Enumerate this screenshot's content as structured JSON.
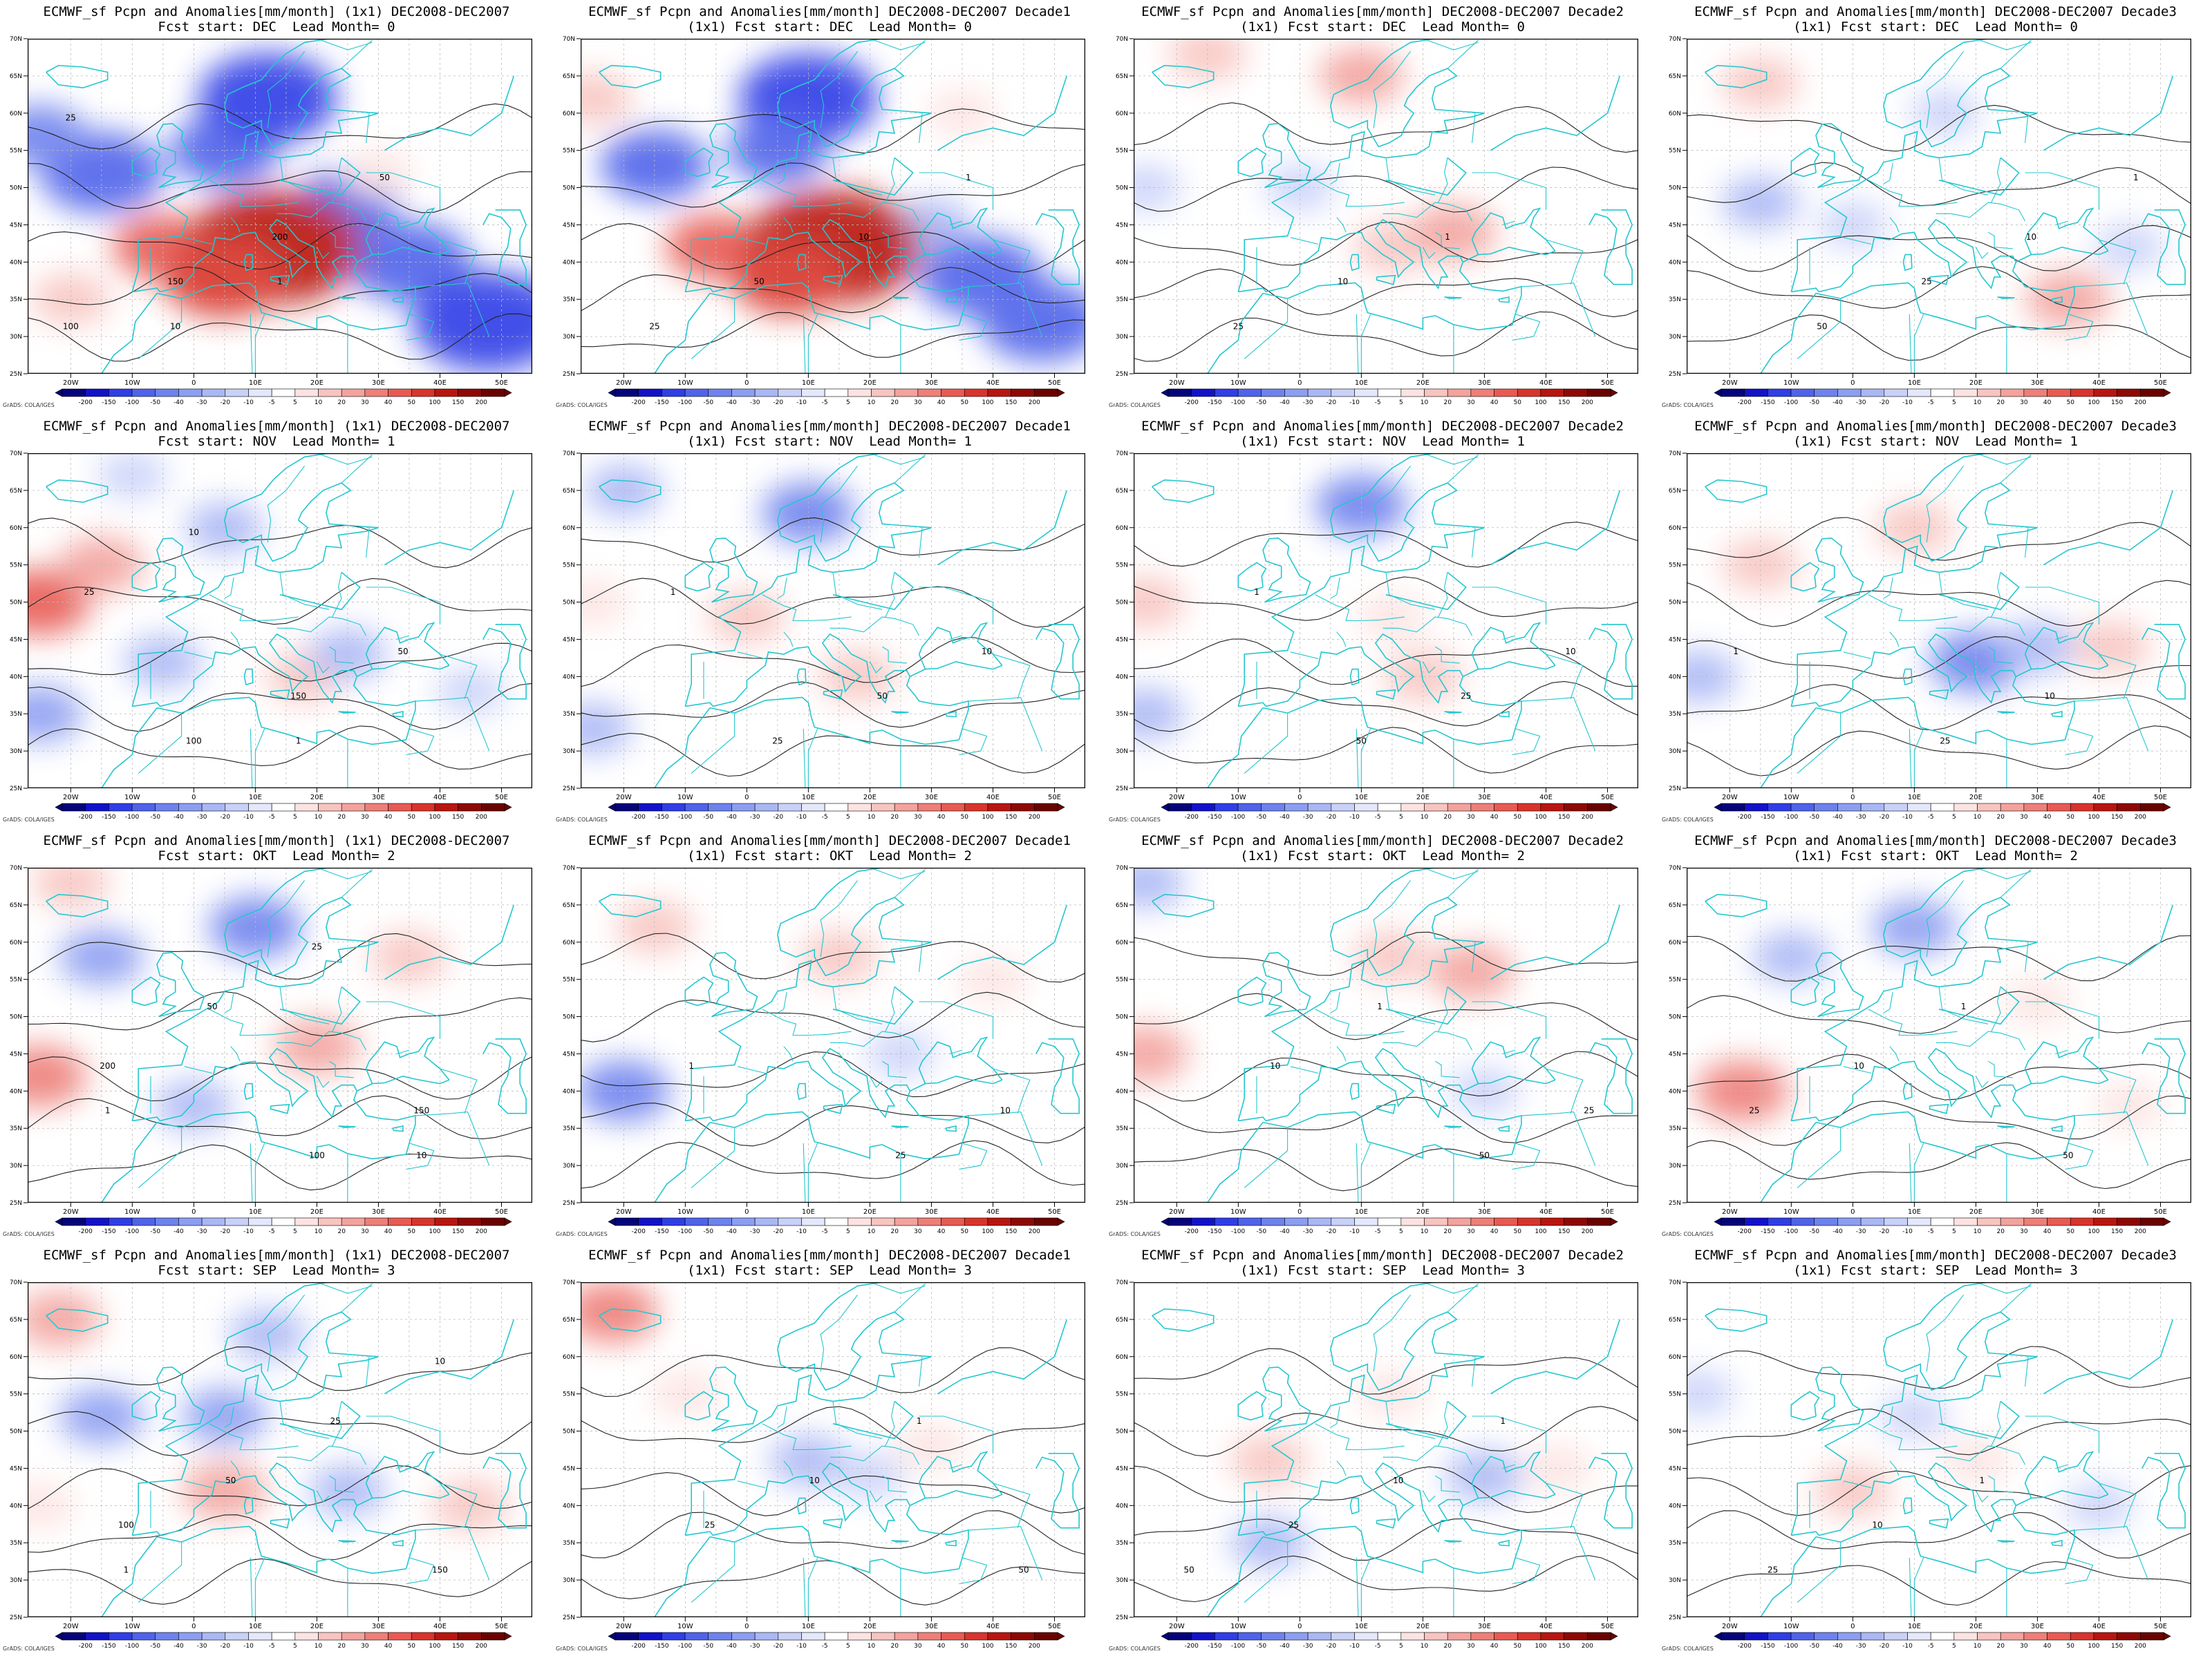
{
  "figure": {
    "variable": "Pcpn and Anomalies[mm/month]",
    "colorbar_levels": [
      "-200",
      "-150",
      "-100",
      "-50",
      "-40",
      "-30",
      "-20",
      "-10",
      "-5",
      "5",
      "10",
      "20",
      "30",
      "40",
      "50",
      "100",
      "150",
      "200"
    ],
    "colorbar_colors": [
      "#05047a",
      "#1212c9",
      "#2f3ee6",
      "#4f63ea",
      "#6e82ee",
      "#8c9ef2",
      "#aab7f5",
      "#c9d1f9",
      "#e4e8fc",
      "#ffffff",
      "#fce3e1",
      "#f8c4c0",
      "#f3a29d",
      "#ee7e78",
      "#e85a52",
      "#d8342c",
      "#b9150f",
      "#8e0804",
      "#6a0300"
    ],
    "credit": "GrADS: COLA/IGES",
    "x_ticks": [
      "20W",
      "10W",
      "0",
      "10E",
      "20E",
      "30E",
      "40E",
      "50E"
    ],
    "y_ticks": [
      "25N",
      "30N",
      "35N",
      "40N",
      "45N",
      "50N",
      "55N",
      "60N",
      "65N",
      "70N"
    ],
    "colors": {
      "land_outline": "#23c7cf",
      "contour": "#222222",
      "grid_dash": "#bbbbbb"
    }
  },
  "panels": [
    {
      "title_line1": "ECMWF_sf Pcpn and Anomalies[mm/month] (1x1) DEC2008-DEC2007",
      "title_line2": "Fcst start: DEC  Lead Month= 0",
      "contour_labels": [
        "100",
        "150",
        "200",
        "50",
        "25",
        "10",
        "1"
      ],
      "anomaly_blobs": [
        {
          "lon": -15,
          "lat": 52,
          "value": -80
        },
        {
          "lon": 5,
          "lat": 55,
          "value": -60
        },
        {
          "lon": 12,
          "lat": 62,
          "value": -100
        },
        {
          "lon": 25,
          "lat": 48,
          "value": -50
        },
        {
          "lon": 35,
          "lat": 40,
          "value": -80
        },
        {
          "lon": 48,
          "lat": 32,
          "value": -120
        },
        {
          "lon": -25,
          "lat": 57,
          "value": -40
        },
        {
          "lon": -5,
          "lat": 42,
          "value": 50
        },
        {
          "lon": 13,
          "lat": 42,
          "value": 150
        },
        {
          "lon": 5,
          "lat": 38,
          "value": 80
        },
        {
          "lon": -20,
          "lat": 35,
          "value": 20
        },
        {
          "lon": 30,
          "lat": 52,
          "value": 10
        }
      ]
    },
    {
      "title_line1": "ECMWF_sf Pcpn and Anomalies[mm/month] DEC2008-DEC2007 Decade1",
      "title_line2": "(1x1) Fcst start: DEC  Lead Month= 0",
      "contour_labels": [
        "25",
        "50",
        "10",
        "1"
      ],
      "anomaly_blobs": [
        {
          "lon": -15,
          "lat": 53,
          "value": -60
        },
        {
          "lon": 10,
          "lat": 62,
          "value": -100
        },
        {
          "lon": 5,
          "lat": 55,
          "value": -50
        },
        {
          "lon": 30,
          "lat": 45,
          "value": -20
        },
        {
          "lon": 38,
          "lat": 38,
          "value": -80
        },
        {
          "lon": 48,
          "lat": 32,
          "value": -80
        },
        {
          "lon": -5,
          "lat": 42,
          "value": 50
        },
        {
          "lon": 14,
          "lat": 42,
          "value": 150
        },
        {
          "lon": 7,
          "lat": 38,
          "value": 70
        },
        {
          "lon": -25,
          "lat": 62,
          "value": 20
        },
        {
          "lon": 35,
          "lat": 60,
          "value": 10
        }
      ]
    },
    {
      "title_line1": "ECMWF_sf Pcpn and Anomalies[mm/month] DEC2008-DEC2007 Decade2",
      "title_line2": "(1x1) Fcst start: DEC  Lead Month= 0",
      "contour_labels": [
        "25",
        "10",
        "1"
      ],
      "anomaly_blobs": [
        {
          "lon": -15,
          "lat": 68,
          "value": 20
        },
        {
          "lon": 10,
          "lat": 65,
          "value": 30
        },
        {
          "lon": 0,
          "lat": 50,
          "value": -10
        },
        {
          "lon": 15,
          "lat": 42,
          "value": 20
        },
        {
          "lon": 25,
          "lat": 44,
          "value": 30
        },
        {
          "lon": -25,
          "lat": 50,
          "value": -10
        }
      ]
    },
    {
      "title_line1": "ECMWF_sf Pcpn and Anomalies[mm/month] DEC2008-DEC2007 Decade3",
      "title_line2": "(1x1) Fcst start: DEC  Lead Month= 0",
      "contour_labels": [
        "50",
        "25",
        "10",
        "1"
      ],
      "anomaly_blobs": [
        {
          "lon": -15,
          "lat": 64,
          "value": 20
        },
        {
          "lon": -15,
          "lat": 48,
          "value": -20
        },
        {
          "lon": 0,
          "lat": 45,
          "value": -10
        },
        {
          "lon": 35,
          "lat": 35,
          "value": 30
        },
        {
          "lon": 45,
          "lat": 42,
          "value": -10
        },
        {
          "lon": 15,
          "lat": 60,
          "value": -10
        }
      ]
    },
    {
      "title_line1": "ECMWF_sf Pcpn and Anomalies[mm/month] (1x1) DEC2008-DEC2007",
      "title_line2": "Fcst start: NOV  Lead Month= 1",
      "contour_labels": [
        "100",
        "150",
        "50",
        "25",
        "10",
        "1"
      ],
      "anomaly_blobs": [
        {
          "lon": -25,
          "lat": 50,
          "value": 50
        },
        {
          "lon": -15,
          "lat": 55,
          "value": 30
        },
        {
          "lon": -5,
          "lat": 42,
          "value": -20
        },
        {
          "lon": 5,
          "lat": 60,
          "value": -20
        },
        {
          "lon": 18,
          "lat": 40,
          "value": 20
        },
        {
          "lon": 25,
          "lat": 43,
          "value": -20
        },
        {
          "lon": -25,
          "lat": 35,
          "value": -30
        },
        {
          "lon": 45,
          "lat": 38,
          "value": -10
        },
        {
          "lon": -10,
          "lat": 67,
          "value": -10
        }
      ]
    },
    {
      "title_line1": "ECMWF_sf Pcpn and Anomalies[mm/month] DEC2008-DEC2007 Decade1",
      "title_line2": "(1x1) Fcst start: NOV  Lead Month= 1",
      "contour_labels": [
        "25",
        "50",
        "10",
        "1"
      ],
      "anomaly_blobs": [
        {
          "lon": -20,
          "lat": 65,
          "value": -20
        },
        {
          "lon": 10,
          "lat": 62,
          "value": -40
        },
        {
          "lon": 0,
          "lat": 48,
          "value": 20
        },
        {
          "lon": 18,
          "lat": 40,
          "value": 20
        },
        {
          "lon": -25,
          "lat": 33,
          "value": -20
        },
        {
          "lon": -25,
          "lat": 50,
          "value": 10
        }
      ]
    },
    {
      "title_line1": "ECMWF_sf Pcpn and Anomalies[mm/month] DEC2008-DEC2007 Decade2",
      "title_line2": "(1x1) Fcst start: NOV  Lead Month= 1",
      "contour_labels": [
        "50",
        "25",
        "10",
        "1"
      ],
      "anomaly_blobs": [
        {
          "lon": -25,
          "lat": 50,
          "value": 20
        },
        {
          "lon": 10,
          "lat": 63,
          "value": -40
        },
        {
          "lon": 15,
          "lat": 48,
          "value": 10
        },
        {
          "lon": 20,
          "lat": 40,
          "value": 20
        },
        {
          "lon": -25,
          "lat": 35,
          "value": -20
        }
      ]
    },
    {
      "title_line1": "ECMWF_sf Pcpn and Anomalies[mm/month] DEC2008-DEC2007 Decade3",
      "title_line2": "(1x1) Fcst start: NOV  Lead Month= 1",
      "contour_labels": [
        "25",
        "10",
        "1"
      ],
      "anomaly_blobs": [
        {
          "lon": 10,
          "lat": 60,
          "value": 20
        },
        {
          "lon": -15,
          "lat": 55,
          "value": 20
        },
        {
          "lon": 20,
          "lat": 42,
          "value": -40
        },
        {
          "lon": 30,
          "lat": 44,
          "value": -20
        },
        {
          "lon": 42,
          "lat": 44,
          "value": 20
        },
        {
          "lon": -25,
          "lat": 40,
          "value": -20
        }
      ]
    },
    {
      "title_line1": "ECMWF_sf Pcpn and Anomalies[mm/month] (1x1) DEC2008-DEC2007",
      "title_line2": "Fcst start: OKT  Lead Month= 2",
      "contour_labels": [
        "100",
        "150",
        "200",
        "50",
        "25",
        "10",
        "1"
      ],
      "anomaly_blobs": [
        {
          "lon": -25,
          "lat": 42,
          "value": 40
        },
        {
          "lon": -15,
          "lat": 58,
          "value": -30
        },
        {
          "lon": 10,
          "lat": 62,
          "value": -40
        },
        {
          "lon": 20,
          "lat": 46,
          "value": 30
        },
        {
          "lon": 35,
          "lat": 58,
          "value": 20
        },
        {
          "lon": -20,
          "lat": 68,
          "value": 20
        },
        {
          "lon": 0,
          "lat": 38,
          "value": -20
        }
      ]
    },
    {
      "title_line1": "ECMWF_sf Pcpn and Anomalies[mm/month] DEC2008-DEC2007 Decade1",
      "title_line2": "(1x1) Fcst start: OKT  Lead Month= 2",
      "contour_labels": [
        "25",
        "10",
        "1"
      ],
      "anomaly_blobs": [
        {
          "lon": -20,
          "lat": 40,
          "value": -40
        },
        {
          "lon": -15,
          "lat": 62,
          "value": 20
        },
        {
          "lon": 15,
          "lat": 58,
          "value": 20
        },
        {
          "lon": 25,
          "lat": 45,
          "value": -10
        },
        {
          "lon": 40,
          "lat": 55,
          "value": 10
        }
      ]
    },
    {
      "title_line1": "ECMWF_sf Pcpn and Anomalies[mm/month] DEC2008-DEC2007 Decade2",
      "title_line2": "(1x1) Fcst start: OKT  Lead Month= 2",
      "contour_labels": [
        "50",
        "25",
        "10",
        "1"
      ],
      "anomaly_blobs": [
        {
          "lon": -25,
          "lat": 45,
          "value": 30
        },
        {
          "lon": 15,
          "lat": 58,
          "value": 20
        },
        {
          "lon": 28,
          "lat": 56,
          "value": 30
        },
        {
          "lon": -25,
          "lat": 68,
          "value": -20
        },
        {
          "lon": 30,
          "lat": 40,
          "value": -10
        }
      ]
    },
    {
      "title_line1": "ECMWF_sf Pcpn and Anomalies[mm/month] DEC2008-DEC2007 Decade3",
      "title_line2": "(1x1) Fcst start: OKT  Lead Month= 2",
      "contour_labels": [
        "50",
        "25",
        "10",
        "1"
      ],
      "anomaly_blobs": [
        {
          "lon": -18,
          "lat": 40,
          "value": 40
        },
        {
          "lon": -10,
          "lat": 58,
          "value": -20
        },
        {
          "lon": 10,
          "lat": 62,
          "value": -30
        },
        {
          "lon": 30,
          "lat": 52,
          "value": 10
        },
        {
          "lon": 45,
          "lat": 38,
          "value": 10
        }
      ]
    },
    {
      "title_line1": "ECMWF_sf Pcpn and Anomalies[mm/month] (1x1) DEC2008-DEC2007",
      "title_line2": "Fcst start: SEP  Lead Month= 3",
      "contour_labels": [
        "150",
        "100",
        "50",
        "25",
        "10",
        "1"
      ],
      "anomaly_blobs": [
        {
          "lon": -22,
          "lat": 65,
          "value": 30
        },
        {
          "lon": -15,
          "lat": 52,
          "value": -30
        },
        {
          "lon": 5,
          "lat": 52,
          "value": -30
        },
        {
          "lon": 12,
          "lat": 63,
          "value": -20
        },
        {
          "lon": 5,
          "lat": 42,
          "value": 30
        },
        {
          "lon": 25,
          "lat": 42,
          "value": -20
        },
        {
          "lon": 45,
          "lat": 40,
          "value": 20
        },
        {
          "lon": -25,
          "lat": 40,
          "value": 10
        }
      ]
    },
    {
      "title_line1": "ECMWF_sf Pcpn and Anomalies[mm/month] DEC2008-DEC2007 Decade1",
      "title_line2": "(1x1) Fcst start: SEP  Lead Month= 3",
      "contour_labels": [
        "50",
        "25",
        "10",
        "1"
      ],
      "anomaly_blobs": [
        {
          "lon": -22,
          "lat": 66,
          "value": 40
        },
        {
          "lon": 10,
          "lat": 46,
          "value": -20
        },
        {
          "lon": -10,
          "lat": 55,
          "value": 10
        },
        {
          "lon": 30,
          "lat": 48,
          "value": 10
        },
        {
          "lon": 20,
          "lat": 44,
          "value": -10
        }
      ]
    },
    {
      "title_line1": "ECMWF_sf Pcpn and Anomalies[mm/month] DEC2008-DEC2007 Decade2",
      "title_line2": "(1x1) Fcst start: SEP  Lead Month= 3",
      "contour_labels": [
        "50",
        "25",
        "10",
        "1"
      ],
      "anomaly_blobs": [
        {
          "lon": -5,
          "lat": 46,
          "value": 20
        },
        {
          "lon": -5,
          "lat": 35,
          "value": -20
        },
        {
          "lon": 30,
          "lat": 44,
          "value": -20
        },
        {
          "lon": 15,
          "lat": 55,
          "value": 10
        },
        {
          "lon": 42,
          "lat": 45,
          "value": 10
        }
      ]
    },
    {
      "title_line1": "ECMWF_sf Pcpn and Anomalies[mm/month] DEC2008-DEC2007 Decade3",
      "title_line2": "(1x1) Fcst start: SEP  Lead Month= 3",
      "contour_labels": [
        "25",
        "10",
        "1"
      ],
      "anomaly_blobs": [
        {
          "lon": 0,
          "lat": 42,
          "value": 20
        },
        {
          "lon": 10,
          "lat": 52,
          "value": -10
        },
        {
          "lon": 20,
          "lat": 46,
          "value": 10
        },
        {
          "lon": 40,
          "lat": 40,
          "value": -10
        },
        {
          "lon": -25,
          "lat": 55,
          "value": -10
        }
      ]
    }
  ]
}
